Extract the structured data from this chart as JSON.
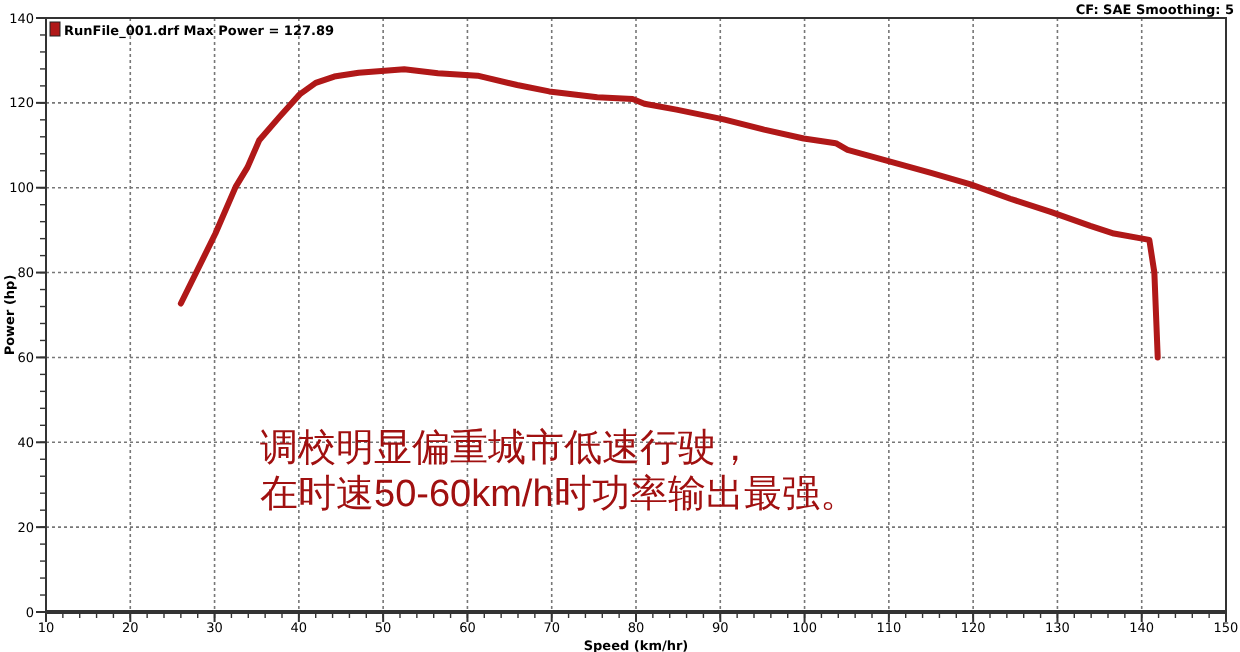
{
  "chart_data": {
    "type": "line",
    "xlabel": "Speed (km/hr)",
    "ylabel": "Power (hp)",
    "annotations": [
      "CF: SAE  Smoothing: 5",
      "调校明显偏重城市低速行驶，",
      "在时速50-60km/h时功率输出最强。"
    ],
    "series": [
      {
        "name": "RunFile_001.drf Max Power = 127.89",
        "color": "#b01818",
        "x": [
          26,
          30.1,
          32.5,
          33.9,
          35.3,
          37.7,
          40.1,
          42,
          44.2,
          47.1,
          52.5,
          56.5,
          61.2,
          65.9,
          69.7,
          75.4,
          79.6,
          81,
          84.8,
          90.4,
          95.2,
          99.9,
          103.7,
          105.1,
          109.3,
          115,
          119.7,
          124.4,
          129.2,
          133.9,
          136.7,
          140.9,
          141.5,
          141.9
        ],
        "values": [
          72.7,
          89.2,
          100.2,
          104.8,
          111.2,
          116.7,
          122,
          124.7,
          126.2,
          127.1,
          127.9,
          127,
          126.4,
          124.2,
          122.7,
          121.3,
          120.9,
          119.8,
          118.4,
          116.1,
          113.7,
          111.6,
          110.5,
          108.9,
          106.6,
          103.5,
          100.8,
          97.4,
          94.3,
          91,
          89.2,
          87.7,
          80,
          60
        ]
      }
    ],
    "xlim": [
      10,
      150
    ],
    "ylim": [
      0,
      140
    ],
    "xticks": [
      10,
      20,
      30,
      40,
      50,
      60,
      70,
      80,
      90,
      100,
      110,
      120,
      130,
      140,
      150
    ],
    "yticks": [
      0,
      20,
      40,
      60,
      80,
      100,
      120,
      140
    ],
    "grid": true,
    "legend": "top left",
    "line_style": "solid"
  }
}
